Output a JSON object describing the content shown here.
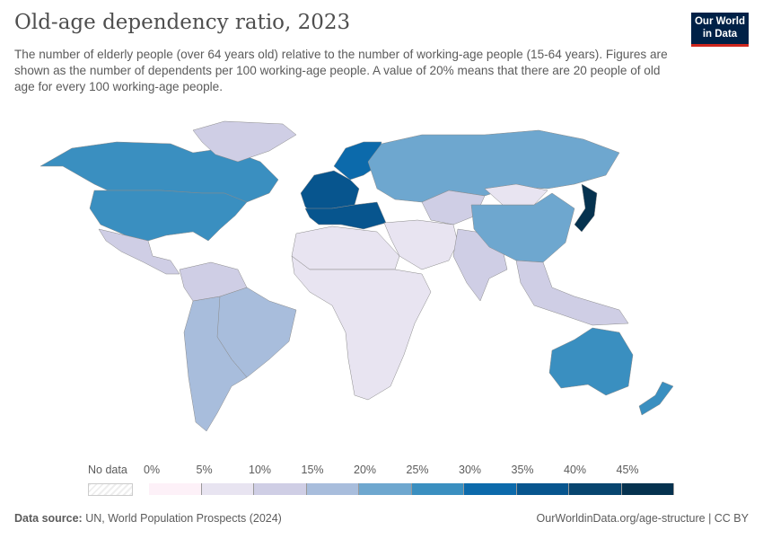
{
  "header": {
    "title": "Old-age dependency ratio, 2023",
    "subtitle": "The number of elderly people (over 64 years old) relative to the number of working-age people (15-64 years). Figures are shown as the number of dependents per 100 working-age people. A value of 20% means that there are 20 people of old age for every 100 working-age people.",
    "logo_line1": "Our World",
    "logo_line2": "in Data"
  },
  "legend": {
    "no_data_label": "No data",
    "ticks": [
      "0%",
      "5%",
      "10%",
      "15%",
      "20%",
      "25%",
      "30%",
      "35%",
      "40%",
      "45%"
    ],
    "colors": [
      "#fdf1f8",
      "#e8e4f1",
      "#cfcee5",
      "#a8bddc",
      "#6ea7cf",
      "#3a8fc0",
      "#0c6aab",
      "#07558e",
      "#07456f",
      "#05324f"
    ]
  },
  "regions": [
    {
      "name": "Canada",
      "value": 28
    },
    {
      "name": "United States",
      "value": 27
    },
    {
      "name": "Greenland",
      "value": 14
    },
    {
      "name": "Mexico & Central America",
      "value": 12
    },
    {
      "name": "Brazil",
      "value": 15
    },
    {
      "name": "Southern South America",
      "value": 17
    },
    {
      "name": "Northern South America",
      "value": 12
    },
    {
      "name": "Western Europe",
      "value": 35
    },
    {
      "name": "Southern Europe",
      "value": 37
    },
    {
      "name": "Nordics",
      "value": 33
    },
    {
      "name": "Russia",
      "value": 24
    },
    {
      "name": "Central Asia",
      "value": 10
    },
    {
      "name": "North Africa",
      "value": 9
    },
    {
      "name": "Sub-Saharan Africa",
      "value": 6
    },
    {
      "name": "Middle East",
      "value": 6
    },
    {
      "name": "India & South Asia",
      "value": 11
    },
    {
      "name": "China",
      "value": 20
    },
    {
      "name": "Mongolia",
      "value": 7
    },
    {
      "name": "Japan",
      "value": 50
    },
    {
      "name": "Southeast Asia",
      "value": 11
    },
    {
      "name": "Australia",
      "value": 26
    },
    {
      "name": "New Zealand",
      "value": 26
    }
  ],
  "footer": {
    "source_label": "Data source:",
    "source": "UN, World Population Prospects (2024)",
    "url": "OurWorldinData.org/age-structure | CC BY"
  }
}
